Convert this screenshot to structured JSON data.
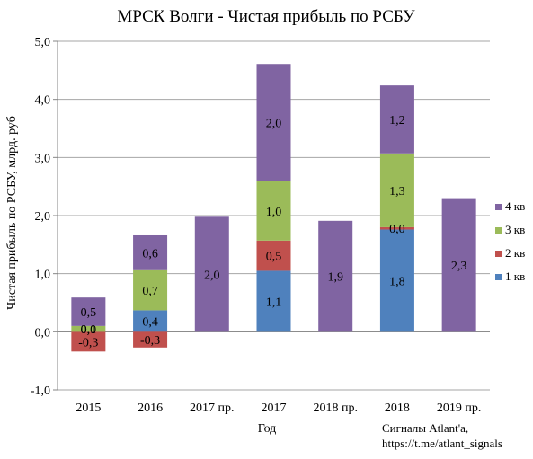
{
  "chart_data": {
    "type": "bar",
    "stacked": true,
    "title": "МРСК Волги - Чистая прибыль по РСБУ",
    "xlabel": "Год",
    "ylabel": "Чистая прибыль по РСБУ, млрд. руб",
    "ylim": [
      -1.0,
      5.0
    ],
    "y_ticks": [
      -1.0,
      0.0,
      1.0,
      2.0,
      3.0,
      4.0,
      5.0
    ],
    "y_tick_labels": [
      "-1,0",
      "0,0",
      "1,0",
      "2,0",
      "3,0",
      "4,0",
      "5,0"
    ],
    "grid": true,
    "legend_position": "right",
    "categories": [
      "2015",
      "2016",
      "2017 пр.",
      "2017",
      "2018 пр.",
      "2018",
      "2019 пр."
    ],
    "series": [
      {
        "name": "1 кв",
        "color": "#4F81BD",
        "values": [
          0,
          0.37,
          0,
          1.05,
          0,
          1.76,
          0
        ],
        "labels": [
          "",
          "0,4",
          "",
          "1,1",
          "",
          "1,8",
          ""
        ]
      },
      {
        "name": "2 кв",
        "color": "#C0504D",
        "values": [
          -0.34,
          -0.27,
          0,
          0.52,
          0,
          0.04,
          0
        ],
        "labels": [
          "-0,3",
          "-0,3",
          "",
          "0,5",
          "",
          "0,0",
          ""
        ]
      },
      {
        "name": "3 кв",
        "color": "#9BBB59",
        "values": [
          0.1,
          0.69,
          0,
          1.02,
          0,
          1.27,
          0
        ],
        "labels": [
          "0,1",
          "0,7",
          "",
          "1,0",
          "",
          "1,3",
          ""
        ]
      },
      {
        "name": "4 кв",
        "color": "#8064A2",
        "values": [
          0.49,
          0.6,
          1.98,
          2.02,
          1.91,
          1.17,
          2.3
        ],
        "labels": [
          "0,5",
          "0,6",
          "2,0",
          "2,0",
          "1,9",
          "1,2",
          "2,3"
        ]
      }
    ],
    "extra_labels": [
      {
        "category": "2015",
        "text": "0,0"
      }
    ]
  },
  "credit": {
    "line1": "Сигналы Atlant'a,",
    "line2": "https://t.me/atlant_signals"
  }
}
